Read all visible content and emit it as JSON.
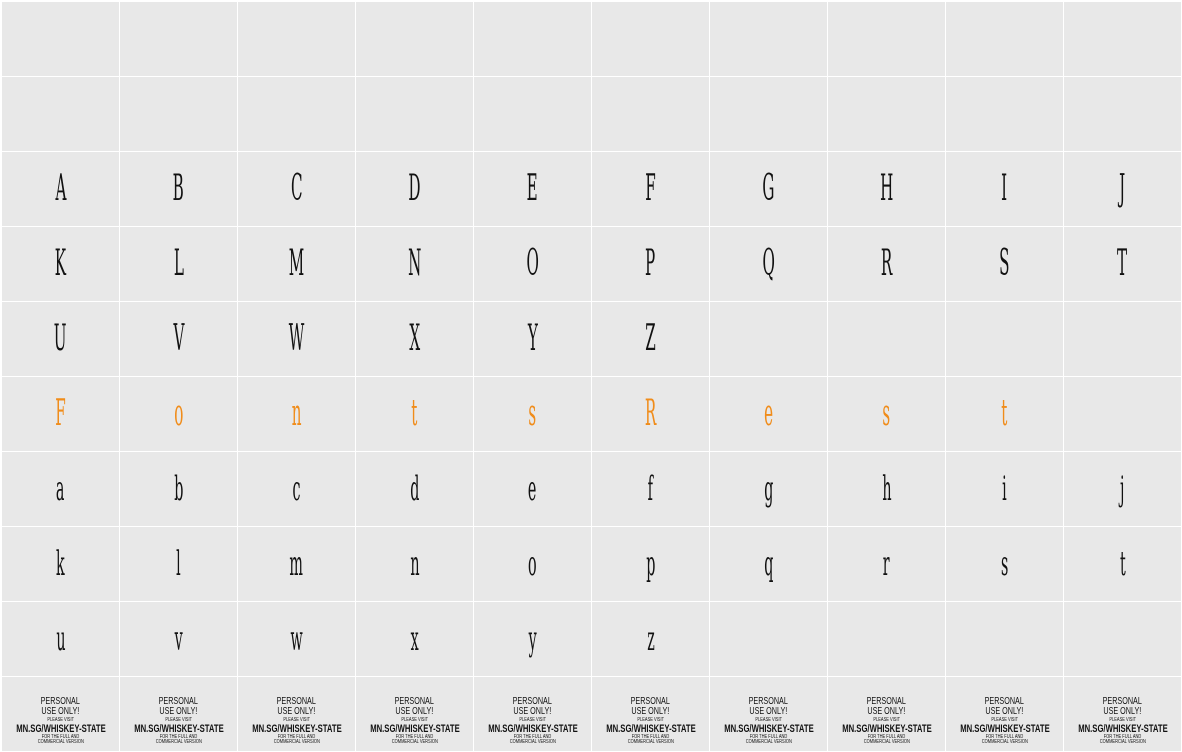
{
  "colors": {
    "cell_bg": "#e8e8e8",
    "grid_line": "#ffffff",
    "glyph": "#111111",
    "accent": "#f08c1a"
  },
  "rows": [
    {
      "cells": [
        "",
        "",
        "",
        "",
        "",
        "",
        "",
        "",
        "",
        ""
      ]
    },
    {
      "cells": [
        "",
        "",
        "",
        "",
        "",
        "",
        "",
        "",
        "",
        ""
      ]
    },
    {
      "cells": [
        "A",
        "B",
        "C",
        "D",
        "E",
        "F",
        "G",
        "H",
        "I",
        "J"
      ]
    },
    {
      "cells": [
        "K",
        "L",
        "M",
        "N",
        "O",
        "P",
        "Q",
        "R",
        "S",
        "T"
      ]
    },
    {
      "cells": [
        "U",
        "V",
        "W",
        "X",
        "Y",
        "Z",
        "",
        "",
        "",
        ""
      ]
    },
    {
      "cells": [
        "F",
        "o",
        "n",
        "t",
        "s",
        "R",
        "e",
        "s",
        "t",
        ""
      ],
      "accent": true
    },
    {
      "cells": [
        "a",
        "b",
        "c",
        "d",
        "e",
        "f",
        "g",
        "h",
        "i",
        "j"
      ]
    },
    {
      "cells": [
        "k",
        "l",
        "m",
        "n",
        "o",
        "p",
        "q",
        "r",
        "s",
        "t"
      ]
    },
    {
      "cells": [
        "u",
        "v",
        "w",
        "x",
        "y",
        "z",
        "",
        "",
        "",
        ""
      ]
    }
  ],
  "notice": {
    "line1": "PERSONAL",
    "line2": "USE ONLY!",
    "line3": "PLEASE VISIT",
    "line4": "MN.SG/WHISKEY-STATE",
    "line5": "FOR THE FULL AND",
    "line6": "COMMERCIAL VERSION"
  }
}
